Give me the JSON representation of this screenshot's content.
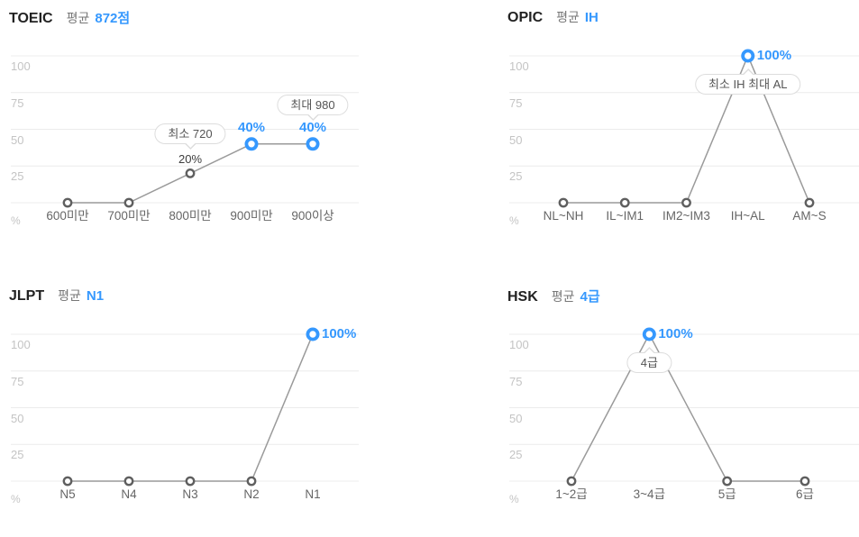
{
  "colors": {
    "accent": "#3598fe",
    "line": "#9a9a9a",
    "grid": "#ececec",
    "point_stroke": "#5f5f5f",
    "point_fill": "#ffffff",
    "ytick_text": "#c4c4c4",
    "category_text": "#666666",
    "title_text": "#222222",
    "subtitle_text": "#777777",
    "plain_label_text": "#3d3d3d",
    "tooltip_text": "#555555",
    "tooltip_border": "#dddddd"
  },
  "y_axis": {
    "ticks": [
      "100",
      "75",
      "50",
      "25"
    ],
    "unit": "%"
  },
  "chart_data": [
    {
      "id": "toeic",
      "type": "line",
      "title": "TOEIC",
      "average_label": "평균",
      "average_value": "872점",
      "categories": [
        "600미만",
        "700미만",
        "800미만",
        "900미만",
        "900이상"
      ],
      "values": [
        0,
        0,
        20,
        40,
        40
      ],
      "point_labels": [
        "",
        "",
        "20%",
        "40%",
        "40%"
      ],
      "highlighted": [
        false,
        false,
        false,
        true,
        true
      ],
      "label_side": "top",
      "tooltips": [
        {
          "text": "최소 720",
          "index": 2,
          "side": "top"
        },
        {
          "text": "최대 980",
          "index": 4,
          "side": "top"
        }
      ],
      "ylabel": "%",
      "ylim": [
        0,
        100
      ],
      "grid": true,
      "legend": false
    },
    {
      "id": "opic",
      "type": "line",
      "title": "OPIC",
      "average_label": "평균",
      "average_value": "IH",
      "categories": [
        "NL~NH",
        "IL~IM1",
        "IM2~IM3",
        "IH~AL",
        "AM~S"
      ],
      "values": [
        0,
        0,
        0,
        100,
        0
      ],
      "point_labels": [
        "",
        "",
        "",
        "100%",
        ""
      ],
      "highlighted": [
        false,
        false,
        false,
        true,
        false
      ],
      "label_side": "right",
      "tooltips": [
        {
          "text": "최소 IH 최대 AL",
          "index": 3,
          "side": "bottom"
        }
      ],
      "ylabel": "%",
      "ylim": [
        0,
        100
      ],
      "grid": true,
      "legend": false
    },
    {
      "id": "jlpt",
      "type": "line",
      "title": "JLPT",
      "average_label": "평균",
      "average_value": "N1",
      "categories": [
        "N5",
        "N4",
        "N3",
        "N2",
        "N1"
      ],
      "values": [
        0,
        0,
        0,
        0,
        100
      ],
      "point_labels": [
        "",
        "",
        "",
        "",
        "100%"
      ],
      "highlighted": [
        false,
        false,
        false,
        false,
        true
      ],
      "label_side": "right",
      "tooltips": [],
      "ylabel": "%",
      "ylim": [
        0,
        100
      ],
      "grid": true,
      "legend": false
    },
    {
      "id": "hsk",
      "type": "line",
      "title": "HSK",
      "average_label": "평균",
      "average_value": "4급",
      "categories": [
        "1~2급",
        "3~4급",
        "5급",
        "6급"
      ],
      "values": [
        0,
        100,
        0,
        0
      ],
      "point_labels": [
        "",
        "100%",
        "",
        ""
      ],
      "highlighted": [
        false,
        true,
        false,
        false
      ],
      "label_side": "right",
      "tooltips": [
        {
          "text": "4급",
          "index": 1,
          "side": "bottom"
        }
      ],
      "ylabel": "%",
      "ylim": [
        0,
        100
      ],
      "grid": true,
      "legend": false
    }
  ]
}
